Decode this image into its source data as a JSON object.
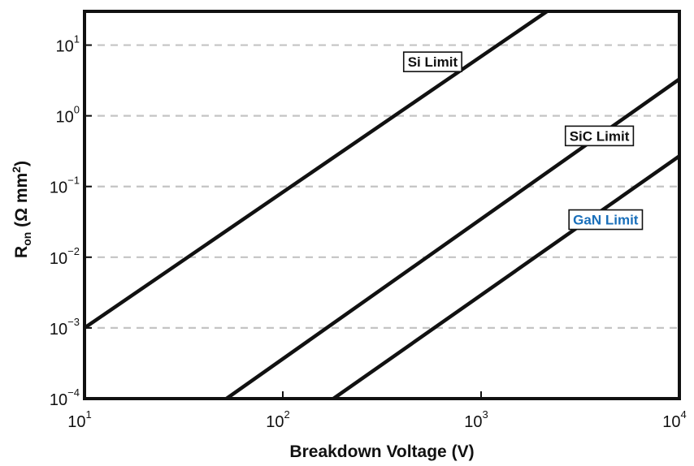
{
  "chart_data": {
    "type": "line",
    "xscale": "log",
    "yscale": "log",
    "xlim": [
      10,
      10000
    ],
    "ylim": [
      0.0001,
      30
    ],
    "xlabel": "Breakdown Voltage (V)",
    "ylabel": {
      "base": "R",
      "sub": "on",
      "rest": " (Ω mm",
      "sup": "2",
      "end": ")"
    },
    "x_ticks": [
      {
        "value": 10,
        "base": "10",
        "exp": "1"
      },
      {
        "value": 100,
        "base": "10",
        "exp": "2"
      },
      {
        "value": 1000,
        "base": "10",
        "exp": "3"
      },
      {
        "value": 10000,
        "base": "10",
        "exp": "4"
      }
    ],
    "y_ticks": [
      {
        "value": 0.0001,
        "base": "10",
        "exp": "−4"
      },
      {
        "value": 0.001,
        "base": "10",
        "exp": "−3"
      },
      {
        "value": 0.01,
        "base": "10",
        "exp": "−2"
      },
      {
        "value": 0.1,
        "base": "10",
        "exp": "−1"
      },
      {
        "value": 1,
        "base": "10",
        "exp": "0"
      },
      {
        "value": 10,
        "base": "10",
        "exp": "1"
      }
    ],
    "grid": {
      "y_major": true,
      "style": "dashed"
    },
    "series": [
      {
        "name": "Si Limit",
        "x": [
          10,
          2150
        ],
        "y": [
          0.001,
          30
        ],
        "label_at": [
          570,
          5.8
        ],
        "label_color": "#111111"
      },
      {
        "name": "SiC Limit",
        "x": [
          52,
          10000
        ],
        "y": [
          0.0001,
          3.3
        ],
        "label_at": [
          3950,
          0.52
        ],
        "label_color": "#111111"
      },
      {
        "name": "GaN Limit",
        "x": [
          180,
          10000
        ],
        "y": [
          0.0001,
          0.27
        ],
        "label_at": [
          4250,
          0.034
        ],
        "label_color": "#1a6fba"
      }
    ]
  }
}
